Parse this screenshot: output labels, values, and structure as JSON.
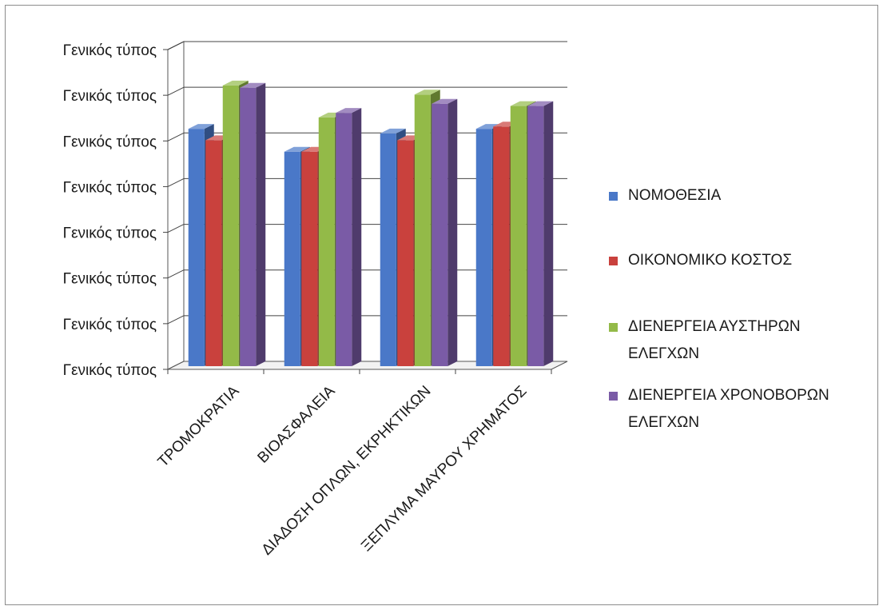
{
  "chart_data": {
    "type": "bar",
    "title": "",
    "xlabel": "",
    "ylabel": "",
    "categories": [
      "ΤΡΟΜΟΚΡΑΤΙΑ",
      "ΒΙΟΑΣΦΑΛΕΙΑ",
      "ΔΙΑΔΟΣΗ ΟΠΛΩΝ, ΕΚΡΗΚΤΙΚΩΝ",
      "ΞΕΠΛΥΜΑ ΜΑΥΡΟΥ ΧΡΗΜΑΤΟΣ"
    ],
    "y_tick_labels": [
      "Γενικός τύπος",
      "Γενικός τύπος",
      "Γενικός τύπος",
      "Γενικός τύπος",
      "Γενικός τύπος",
      "Γενικός τύπος",
      "Γενικός τύπος",
      "Γενικός τύπος"
    ],
    "ylim": [
      0,
      7
    ],
    "grid": true,
    "legend_position": "right",
    "series": [
      {
        "name": "ΝΟΜΟΘΕΣΙΑ",
        "color": "#4a78c8",
        "values": [
          5.3,
          4.8,
          5.2,
          5.3
        ]
      },
      {
        "name": "ΟΙΚΟΝΟΜΙΚΟ ΚΟΣΤΟΣ",
        "color": "#c9413d",
        "values": [
          5.05,
          4.8,
          5.05,
          5.35
        ]
      },
      {
        "name": "ΔΙΕΝΕΡΓΕΙΑ ΑΥΣΤΗΡΩΝ ΕΛΕΓΧΩΝ",
        "color": "#93ba48",
        "values": [
          6.25,
          5.55,
          6.05,
          5.8
        ]
      },
      {
        "name": "ΔΙΕΝΕΡΓΕΙΑ ΧΡΟΝΟΒΟΡΩΝ ΕΛΕΓΧΩΝ",
        "color": "#7a5ba6",
        "values": [
          6.2,
          5.65,
          5.85,
          5.8
        ]
      }
    ]
  }
}
